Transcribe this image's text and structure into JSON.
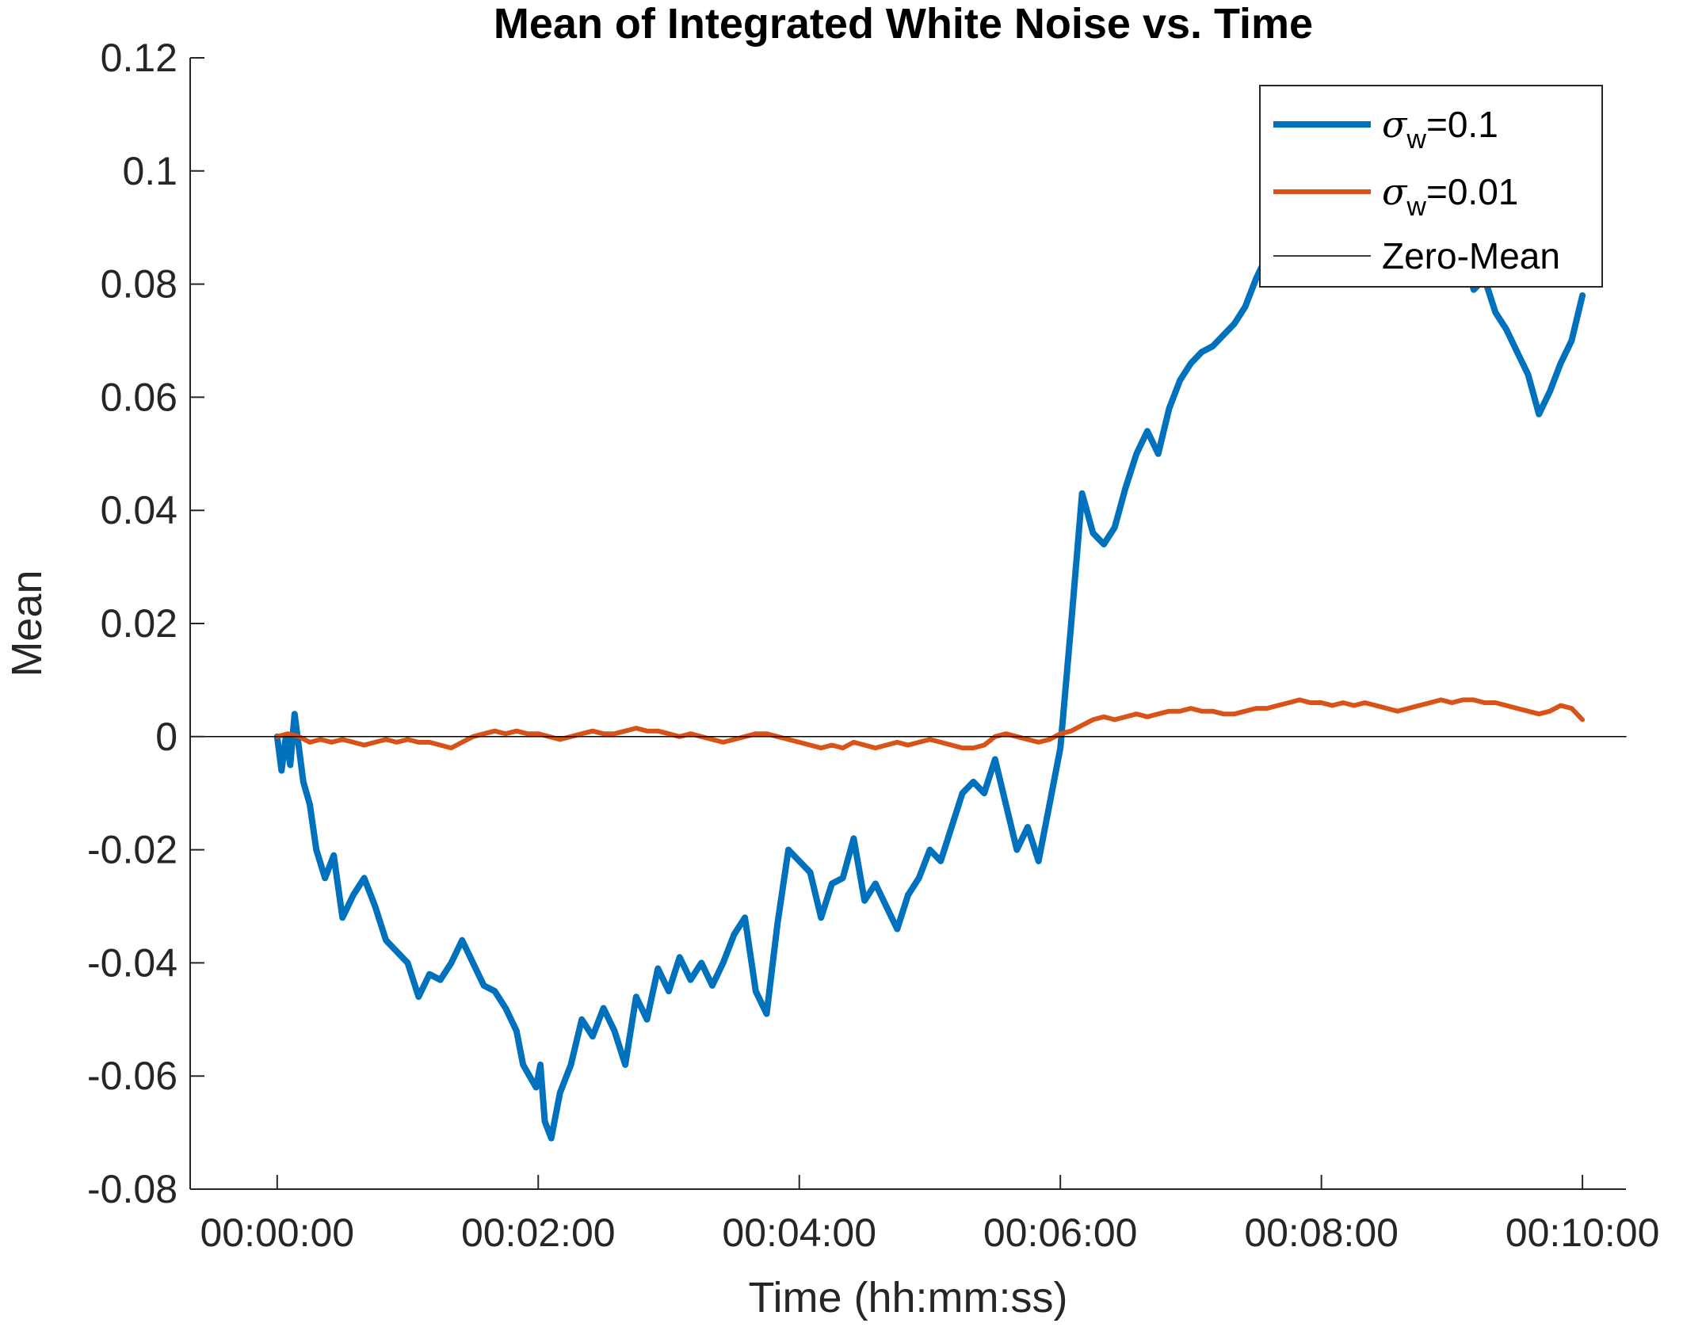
{
  "chart_data": {
    "type": "line",
    "title": "Mean of Integrated White Noise vs. Time",
    "xlabel": "Time (hh:mm:ss)",
    "ylabel": "Mean",
    "xlim_seconds": [
      -40,
      620
    ],
    "ylim": [
      -0.08,
      0.12
    ],
    "x_ticks": [
      {
        "value": 0,
        "label": "00:00:00"
      },
      {
        "value": 120,
        "label": "00:02:00"
      },
      {
        "value": 240,
        "label": "00:04:00"
      },
      {
        "value": 360,
        "label": "00:06:00"
      },
      {
        "value": 480,
        "label": "00:08:00"
      },
      {
        "value": 600,
        "label": "00:10:00"
      }
    ],
    "y_ticks": [
      {
        "value": -0.08,
        "label": "-0.08"
      },
      {
        "value": -0.06,
        "label": "-0.06"
      },
      {
        "value": -0.04,
        "label": "-0.04"
      },
      {
        "value": -0.02,
        "label": "-0.02"
      },
      {
        "value": 0,
        "label": "0"
      },
      {
        "value": 0.02,
        "label": "0.02"
      },
      {
        "value": 0.04,
        "label": "0.04"
      },
      {
        "value": 0.06,
        "label": "0.06"
      },
      {
        "value": 0.08,
        "label": "0.08"
      },
      {
        "value": 0.1,
        "label": "0.1"
      },
      {
        "value": 0.12,
        "label": "0.12"
      }
    ],
    "grid": false,
    "legend_position": "top-right",
    "series": [
      {
        "name": "σw=0.1",
        "legend": {
          "symbol": "σ",
          "subscript": "w",
          "suffix": "=0.1"
        },
        "color": "#0072BD",
        "x": [
          0,
          2,
          4,
          6,
          8,
          10,
          12,
          15,
          18,
          22,
          26,
          30,
          35,
          40,
          45,
          50,
          55,
          60,
          65,
          70,
          75,
          80,
          85,
          90,
          95,
          100,
          105,
          110,
          113,
          116,
          119,
          121,
          123,
          126,
          130,
          135,
          140,
          145,
          150,
          155,
          160,
          165,
          170,
          175,
          180,
          185,
          190,
          195,
          200,
          205,
          210,
          215,
          220,
          225,
          230,
          235,
          240,
          245,
          250,
          255,
          260,
          265,
          270,
          275,
          280,
          285,
          290,
          295,
          300,
          305,
          310,
          315,
          320,
          325,
          330,
          335,
          340,
          345,
          350,
          355,
          360,
          365,
          370,
          375,
          380,
          385,
          390,
          395,
          400,
          405,
          410,
          415,
          420,
          425,
          430,
          435,
          440,
          445,
          450,
          455,
          460,
          465,
          470,
          475,
          480,
          485,
          490,
          495,
          500,
          505,
          510,
          515,
          520,
          525,
          530,
          535,
          540,
          545,
          550,
          555,
          560,
          565,
          570,
          575,
          580,
          585,
          590,
          595,
          600
        ],
        "y": [
          0,
          -0.006,
          0.0,
          -0.005,
          0.004,
          -0.002,
          -0.008,
          -0.012,
          -0.02,
          -0.025,
          -0.021,
          -0.032,
          -0.028,
          -0.025,
          -0.03,
          -0.036,
          -0.038,
          -0.04,
          -0.046,
          -0.042,
          -0.043,
          -0.04,
          -0.036,
          -0.04,
          -0.044,
          -0.045,
          -0.048,
          -0.052,
          -0.058,
          -0.06,
          -0.062,
          -0.058,
          -0.068,
          -0.071,
          -0.063,
          -0.058,
          -0.05,
          -0.053,
          -0.048,
          -0.052,
          -0.058,
          -0.046,
          -0.05,
          -0.041,
          -0.045,
          -0.039,
          -0.043,
          -0.04,
          -0.044,
          -0.04,
          -0.035,
          -0.032,
          -0.045,
          -0.049,
          -0.033,
          -0.02,
          -0.022,
          -0.024,
          -0.032,
          -0.026,
          -0.025,
          -0.018,
          -0.029,
          -0.026,
          -0.03,
          -0.034,
          -0.028,
          -0.025,
          -0.02,
          -0.022,
          -0.016,
          -0.01,
          -0.008,
          -0.01,
          -0.004,
          -0.012,
          -0.02,
          -0.016,
          -0.022,
          -0.012,
          -0.002,
          0.02,
          0.043,
          0.036,
          0.034,
          0.037,
          0.044,
          0.05,
          0.054,
          0.05,
          0.058,
          0.063,
          0.066,
          0.068,
          0.069,
          0.071,
          0.073,
          0.076,
          0.081,
          0.085,
          0.082,
          0.088,
          0.086,
          0.091,
          0.083,
          0.087,
          0.081,
          0.085,
          0.084,
          0.09,
          0.089,
          0.093,
          0.088,
          0.094,
          0.085,
          0.088,
          0.082,
          0.086,
          0.079,
          0.081,
          0.075,
          0.072,
          0.068,
          0.064,
          0.057,
          0.061,
          0.066,
          0.07,
          0.078
        ]
      },
      {
        "name": "σw=0.01",
        "legend": {
          "symbol": "σ",
          "subscript": "w",
          "suffix": "=0.01"
        },
        "color": "#D95319",
        "x": [
          0,
          5,
          10,
          15,
          20,
          25,
          30,
          35,
          40,
          45,
          50,
          55,
          60,
          65,
          70,
          75,
          80,
          85,
          90,
          95,
          100,
          105,
          110,
          115,
          120,
          125,
          130,
          135,
          140,
          145,
          150,
          155,
          160,
          165,
          170,
          175,
          180,
          185,
          190,
          195,
          200,
          205,
          210,
          215,
          220,
          225,
          230,
          235,
          240,
          245,
          250,
          255,
          260,
          265,
          270,
          275,
          280,
          285,
          290,
          295,
          300,
          305,
          310,
          315,
          320,
          325,
          330,
          335,
          340,
          345,
          350,
          355,
          360,
          365,
          370,
          375,
          380,
          385,
          390,
          395,
          400,
          405,
          410,
          415,
          420,
          425,
          430,
          435,
          440,
          445,
          450,
          455,
          460,
          465,
          470,
          475,
          480,
          485,
          490,
          495,
          500,
          505,
          510,
          515,
          520,
          525,
          530,
          535,
          540,
          545,
          550,
          555,
          560,
          565,
          570,
          575,
          580,
          585,
          590,
          595,
          600
        ],
        "y": [
          0,
          0.0005,
          0.0,
          -0.001,
          -0.0005,
          -0.001,
          -0.0005,
          -0.001,
          -0.0015,
          -0.001,
          -0.0005,
          -0.001,
          -0.0005,
          -0.001,
          -0.001,
          -0.0015,
          -0.002,
          -0.001,
          0.0,
          0.0005,
          0.001,
          0.0005,
          0.001,
          0.0005,
          0.0005,
          0.0,
          -0.0005,
          0.0,
          0.0005,
          0.001,
          0.0005,
          0.0005,
          0.001,
          0.0015,
          0.001,
          0.001,
          0.0005,
          0.0,
          0.0005,
          0.0,
          -0.0005,
          -0.001,
          -0.0005,
          0.0,
          0.0005,
          0.0005,
          0.0,
          -0.0005,
          -0.001,
          -0.0015,
          -0.002,
          -0.0015,
          -0.002,
          -0.001,
          -0.0015,
          -0.002,
          -0.0015,
          -0.001,
          -0.0015,
          -0.001,
          -0.0005,
          -0.001,
          -0.0015,
          -0.002,
          -0.002,
          -0.0015,
          0.0,
          0.0005,
          0.0,
          -0.0005,
          -0.001,
          -0.0005,
          0.0005,
          0.001,
          0.002,
          0.003,
          0.0035,
          0.003,
          0.0035,
          0.004,
          0.0035,
          0.004,
          0.0045,
          0.0045,
          0.005,
          0.0045,
          0.0045,
          0.004,
          0.004,
          0.0045,
          0.005,
          0.005,
          0.0055,
          0.006,
          0.0065,
          0.006,
          0.006,
          0.0055,
          0.006,
          0.0055,
          0.006,
          0.0055,
          0.005,
          0.0045,
          0.005,
          0.0055,
          0.006,
          0.0065,
          0.006,
          0.0065,
          0.0065,
          0.006,
          0.006,
          0.0055,
          0.005,
          0.0045,
          0.004,
          0.0045,
          0.0055,
          0.005,
          0.003
        ]
      },
      {
        "name": "Zero-Mean",
        "legend": {
          "symbol": "",
          "subscript": "",
          "suffix": "Zero-Mean"
        },
        "color": "#000000",
        "x": [
          -40,
          620
        ],
        "y": [
          0,
          0
        ]
      }
    ]
  }
}
